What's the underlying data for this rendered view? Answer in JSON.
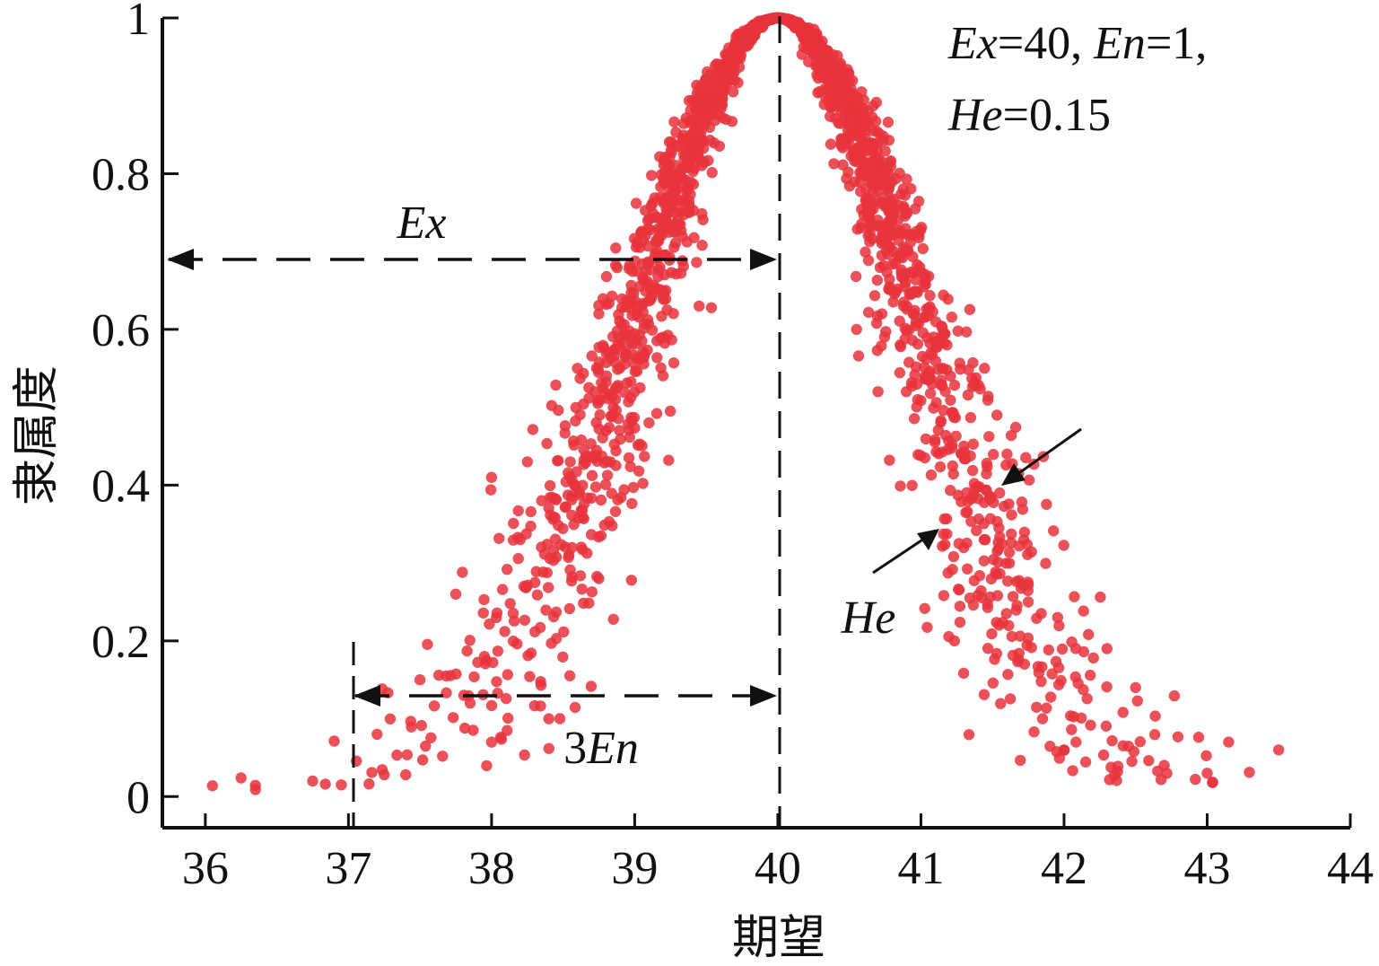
{
  "chart_data": {
    "type": "scatter",
    "xlabel": "期望",
    "ylabel": "隶属度",
    "xlim": [
      35.7,
      44
    ],
    "ylim": [
      -0.04,
      1
    ],
    "x_ticks": [
      "36",
      "37",
      "38",
      "39",
      "40",
      "41",
      "42",
      "43",
      "44"
    ],
    "y_ticks": [
      "0",
      "0.2",
      "0.4",
      "0.6",
      "0.8",
      "1"
    ],
    "grid": false,
    "point_color": "#e8323c",
    "params": {
      "Ex": 40,
      "En": 1,
      "He": 0.15
    },
    "parameter_text": {
      "line1": {
        "ex_label": "Ex",
        "ex_val": "=40, ",
        "en_label": "En",
        "en_val": "=1,"
      },
      "line2": {
        "he_label": "He",
        "he_val": "=0.15"
      }
    },
    "annotations": {
      "ex_label": "Ex",
      "three_en_prefix": "3",
      "three_en_label": "En",
      "he_label": "He"
    },
    "sample_points": [
      [
        36.05,
        0.014
      ],
      [
        36.25,
        0.024
      ],
      [
        36.35,
        0.009
      ],
      [
        36.75,
        0.02
      ],
      [
        36.95,
        0.015
      ],
      [
        37.2,
        0.08
      ],
      [
        37.25,
        0.028
      ],
      [
        37.4,
        0.028
      ],
      [
        37.5,
        0.15
      ],
      [
        37.75,
        0.26
      ],
      [
        37.85,
        0.12
      ],
      [
        37.95,
        0.18
      ],
      [
        38.0,
        0.41
      ],
      [
        38.0,
        0.07
      ],
      [
        38.2,
        0.33
      ],
      [
        38.25,
        0.43
      ],
      [
        38.35,
        0.38
      ],
      [
        38.4,
        0.1
      ],
      [
        38.55,
        0.43
      ],
      [
        38.6,
        0.55
      ],
      [
        38.75,
        0.28
      ],
      [
        38.75,
        0.62
      ],
      [
        38.85,
        0.5
      ],
      [
        39.1,
        0.48
      ],
      [
        39.2,
        0.59
      ],
      [
        39.45,
        0.63
      ],
      [
        40.55,
        0.6
      ],
      [
        40.7,
        0.52
      ],
      [
        40.95,
        0.62
      ],
      [
        41.3,
        0.45
      ],
      [
        41.45,
        0.33
      ],
      [
        41.55,
        0.39
      ],
      [
        41.75,
        0.25
      ],
      [
        41.85,
        0.1
      ],
      [
        42.0,
        0.06
      ],
      [
        42.3,
        0.19
      ],
      [
        42.5,
        0.14
      ],
      [
        42.7,
        0.04
      ],
      [
        43.0,
        0.03
      ],
      [
        43.15,
        0.07
      ],
      [
        43.5,
        0.06
      ]
    ]
  }
}
